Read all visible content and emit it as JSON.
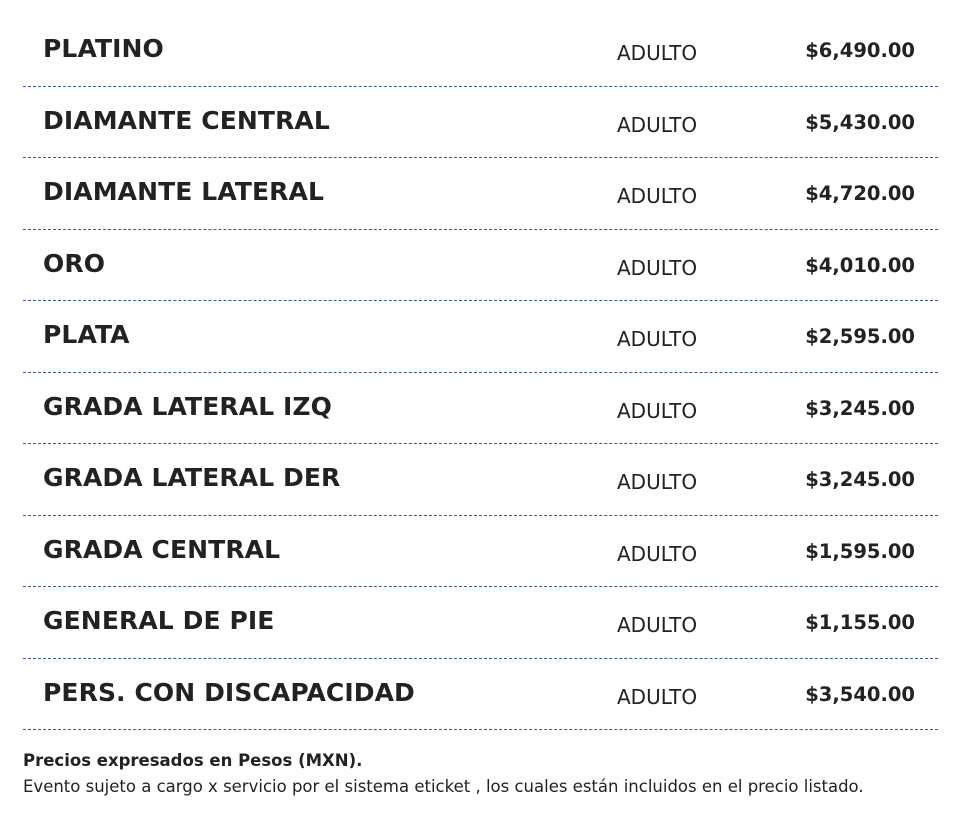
{
  "prices": {
    "rows": [
      {
        "zone": "PLATINO",
        "type": "ADULTO",
        "price": "$6,490.00"
      },
      {
        "zone": "DIAMANTE CENTRAL",
        "type": "ADULTO",
        "price": "$5,430.00"
      },
      {
        "zone": "DIAMANTE LATERAL",
        "type": "ADULTO",
        "price": "$4,720.00"
      },
      {
        "zone": "ORO",
        "type": "ADULTO",
        "price": "$4,010.00"
      },
      {
        "zone": "PLATA",
        "type": "ADULTO",
        "price": "$2,595.00"
      },
      {
        "zone": "GRADA LATERAL IZQ",
        "type": "ADULTO",
        "price": "$3,245.00"
      },
      {
        "zone": "GRADA LATERAL DER",
        "type": "ADULTO",
        "price": "$3,245.00"
      },
      {
        "zone": "GRADA CENTRAL",
        "type": "ADULTO",
        "price": "$1,595.00"
      },
      {
        "zone": "GENERAL DE PIE",
        "type": "ADULTO",
        "price": "$1,155.00"
      },
      {
        "zone": "PERS. CON DISCAPACIDAD",
        "type": "ADULTO",
        "price": "$3,540.00"
      }
    ],
    "divider_color": "#3d5a80"
  },
  "footer": {
    "currency_note": "Precios expresados en Pesos (MXN).",
    "service_note": "Evento sujeto a cargo x servicio por el sistema eticket , los cuales están incluidos en el precio listado."
  }
}
